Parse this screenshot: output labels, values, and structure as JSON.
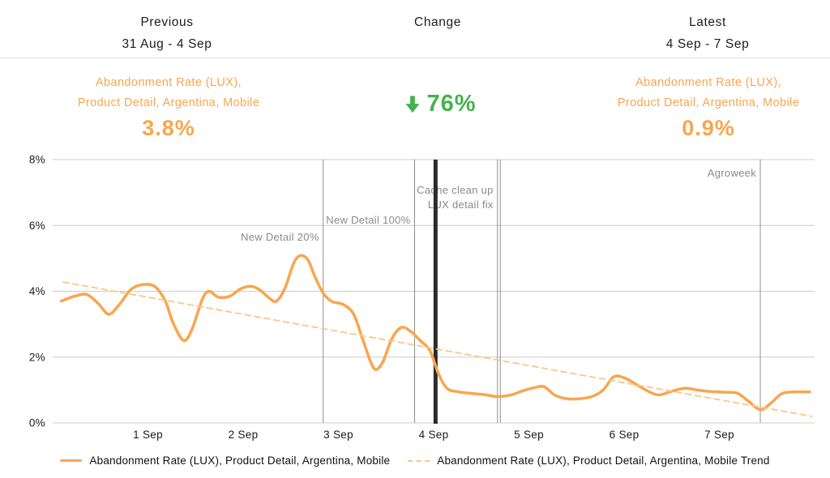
{
  "header": {
    "previous": {
      "label": "Previous",
      "range": "31 Aug - 4 Sep"
    },
    "change": {
      "label": "Change"
    },
    "latest": {
      "label": "Latest",
      "range": "4 Sep - 7 Sep"
    }
  },
  "metrics": {
    "previous": {
      "name_line1": "Abandonment Rate (LUX),",
      "name_line2": "Product Detail, Argentina, Mobile",
      "value": "3.8%"
    },
    "change": {
      "direction": "down",
      "value": "76%"
    },
    "latest": {
      "name_line1": "Abandonment Rate (LUX),",
      "name_line2": "Product Detail, Argentina, Mobile",
      "value": "0.9%"
    }
  },
  "colors": {
    "orange": "#F8A64E",
    "orange_light": "#FAC68C",
    "green": "#44B24E",
    "gridline": "#CCCCCC",
    "annotation_line": "#8F8F8F",
    "annotation_text": "#8A8A8A",
    "period_divider": "#2B2B2B"
  },
  "chart_data": {
    "type": "line",
    "title": "",
    "xlabel": "",
    "ylabel": "",
    "grid": true,
    "legend_position": "bottom",
    "x_axis": {
      "unit": "days since 31 Aug",
      "domain": [
        0,
        8
      ],
      "ticks": [
        {
          "value": 1,
          "label": "1 Sep"
        },
        {
          "value": 2,
          "label": "2 Sep"
        },
        {
          "value": 3,
          "label": "3 Sep"
        },
        {
          "value": 4,
          "label": "4 Sep"
        },
        {
          "value": 5,
          "label": "5 Sep"
        },
        {
          "value": 6,
          "label": "6 Sep"
        },
        {
          "value": 7,
          "label": "7 Sep"
        }
      ]
    },
    "y_axis": {
      "unit": "%",
      "domain": [
        0,
        8
      ],
      "ticks": [
        {
          "value": 0,
          "label": "0%"
        },
        {
          "value": 2,
          "label": "2%"
        },
        {
          "value": 4,
          "label": "4%"
        },
        {
          "value": 6,
          "label": "6%"
        },
        {
          "value": 8,
          "label": "8%"
        }
      ]
    },
    "series": [
      {
        "name": "Abandonment Rate (LUX), Product Detail, Argentina, Mobile",
        "style": "solid",
        "color": "#F8A64E",
        "points": [
          [
            0.09,
            3.7
          ],
          [
            0.23,
            3.85
          ],
          [
            0.36,
            3.9
          ],
          [
            0.48,
            3.62
          ],
          [
            0.59,
            3.3
          ],
          [
            0.7,
            3.6
          ],
          [
            0.82,
            4.05
          ],
          [
            0.94,
            4.2
          ],
          [
            1.07,
            4.15
          ],
          [
            1.18,
            3.72
          ],
          [
            1.27,
            3.0
          ],
          [
            1.38,
            2.5
          ],
          [
            1.47,
            2.9
          ],
          [
            1.57,
            3.75
          ],
          [
            1.64,
            4.0
          ],
          [
            1.74,
            3.82
          ],
          [
            1.86,
            3.85
          ],
          [
            1.97,
            4.07
          ],
          [
            2.08,
            4.15
          ],
          [
            2.17,
            4.05
          ],
          [
            2.28,
            3.78
          ],
          [
            2.35,
            3.7
          ],
          [
            2.44,
            4.1
          ],
          [
            2.53,
            4.85
          ],
          [
            2.6,
            5.08
          ],
          [
            2.68,
            4.95
          ],
          [
            2.76,
            4.4
          ],
          [
            2.85,
            3.9
          ],
          [
            2.94,
            3.68
          ],
          [
            3.05,
            3.6
          ],
          [
            3.16,
            3.3
          ],
          [
            3.26,
            2.5
          ],
          [
            3.37,
            1.67
          ],
          [
            3.46,
            1.82
          ],
          [
            3.56,
            2.55
          ],
          [
            3.66,
            2.9
          ],
          [
            3.76,
            2.78
          ],
          [
            3.86,
            2.5
          ],
          [
            3.96,
            2.2
          ],
          [
            4.05,
            1.5
          ],
          [
            4.14,
            1.05
          ],
          [
            4.25,
            0.95
          ],
          [
            4.38,
            0.9
          ],
          [
            4.53,
            0.86
          ],
          [
            4.67,
            0.8
          ],
          [
            4.81,
            0.85
          ],
          [
            4.94,
            0.98
          ],
          [
            5.06,
            1.07
          ],
          [
            5.16,
            1.1
          ],
          [
            5.27,
            0.85
          ],
          [
            5.39,
            0.74
          ],
          [
            5.52,
            0.73
          ],
          [
            5.66,
            0.8
          ],
          [
            5.78,
            1.0
          ],
          [
            5.89,
            1.4
          ],
          [
            6.0,
            1.37
          ],
          [
            6.14,
            1.15
          ],
          [
            6.26,
            0.95
          ],
          [
            6.37,
            0.85
          ],
          [
            6.51,
            0.97
          ],
          [
            6.64,
            1.05
          ],
          [
            6.77,
            1.0
          ],
          [
            6.92,
            0.95
          ],
          [
            7.07,
            0.93
          ],
          [
            7.19,
            0.9
          ],
          [
            7.31,
            0.65
          ],
          [
            7.43,
            0.4
          ],
          [
            7.54,
            0.6
          ],
          [
            7.65,
            0.88
          ],
          [
            7.77,
            0.94
          ],
          [
            7.95,
            0.94
          ]
        ]
      },
      {
        "name": "Abandonment Rate (LUX), Product Detail, Argentina, Mobile Trend",
        "style": "dashed",
        "color": "#FAC68C",
        "points": [
          [
            0.11,
            4.28
          ],
          [
            7.97,
            0.2
          ]
        ]
      }
    ],
    "annotations": [
      {
        "day": 2.84,
        "label": "New Detail 20%",
        "label_level_pct": 5.65,
        "style": "thin"
      },
      {
        "day": 3.8,
        "label": "New Detail 100%",
        "label_level_pct": 6.17,
        "style": "thin"
      },
      {
        "day": 4.02,
        "label": "",
        "label_level_pct": 0,
        "style": "thick"
      },
      {
        "day": 4.67,
        "label": "Cache clean up",
        "label_level_pct": 7.08,
        "style": "thin"
      },
      {
        "day": 4.7,
        "label": "LUX detail fix",
        "label_level_pct": 6.63,
        "style": "thin",
        "label_day": 4.67
      },
      {
        "day": 7.43,
        "label": "Agroweek",
        "label_level_pct": 7.6,
        "style": "thin"
      }
    ]
  }
}
